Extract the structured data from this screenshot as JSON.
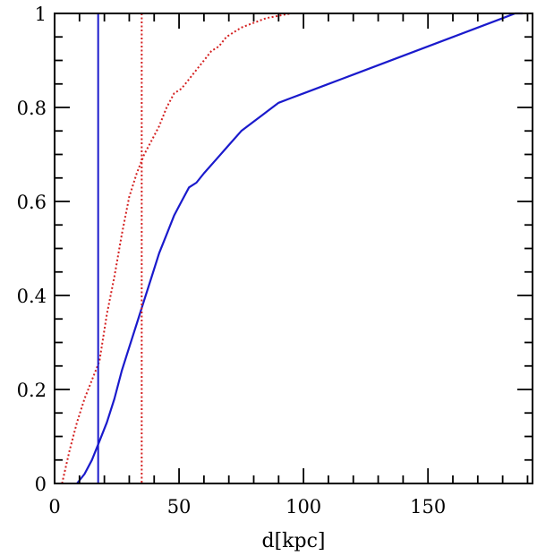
{
  "chart_data": {
    "type": "line",
    "title": "",
    "xlabel": "d[kpc]",
    "ylabel": "",
    "xlim": [
      0,
      192
    ],
    "ylim": [
      0,
      1
    ],
    "x_ticks": [
      0,
      50,
      100,
      150
    ],
    "y_ticks": [
      0,
      0.2,
      0.4,
      0.6,
      0.8,
      1
    ],
    "x_tick_labels": [
      "0",
      "50",
      "100",
      "150"
    ],
    "y_tick_labels": [
      "0",
      "0.2",
      "0.4",
      "0.6",
      "0.8",
      "1"
    ],
    "x_minor_step": 10,
    "y_minor_step": 0.05,
    "grid": false,
    "series": [
      {
        "style": "solid",
        "color": "#1a1acc",
        "x": [
          9,
          12,
          15,
          18,
          21,
          24,
          27,
          30,
          33,
          36,
          39,
          42,
          45,
          48,
          51,
          54,
          57,
          60,
          65,
          70,
          75,
          80,
          85,
          90,
          95,
          100,
          110,
          120,
          130,
          140,
          150,
          160,
          170,
          180,
          185,
          188
        ],
        "y": [
          0,
          0.02,
          0.05,
          0.09,
          0.13,
          0.18,
          0.24,
          0.29,
          0.34,
          0.39,
          0.44,
          0.49,
          0.53,
          0.57,
          0.6,
          0.63,
          0.64,
          0.66,
          0.69,
          0.72,
          0.75,
          0.77,
          0.79,
          0.81,
          0.82,
          0.83,
          0.85,
          0.87,
          0.89,
          0.91,
          0.93,
          0.95,
          0.97,
          0.99,
          1.0,
          1.0
        ]
      },
      {
        "style": "dotted",
        "color": "#d42020",
        "x": [
          3,
          6,
          9,
          12,
          15,
          18,
          21,
          24,
          27,
          30,
          33,
          36,
          39,
          42,
          45,
          48,
          51,
          54,
          57,
          60,
          63,
          66,
          69,
          72,
          75,
          80,
          85,
          90,
          95,
          100,
          110,
          120,
          130,
          140,
          150,
          160,
          170,
          190
        ],
        "y": [
          0,
          0.07,
          0.13,
          0.18,
          0.22,
          0.26,
          0.36,
          0.44,
          0.53,
          0.61,
          0.66,
          0.7,
          0.73,
          0.76,
          0.8,
          0.83,
          0.84,
          0.86,
          0.88,
          0.9,
          0.92,
          0.93,
          0.95,
          0.96,
          0.97,
          0.98,
          0.99,
          0.995,
          1.0,
          1.0,
          1.0,
          1.0,
          1.0,
          1.0,
          1.0,
          1.0,
          1.0,
          1.0
        ]
      }
    ],
    "vertical_lines": [
      {
        "x": 17.5,
        "style": "solid",
        "color": "#1a1acc"
      },
      {
        "x": 35,
        "style": "dotted",
        "color": "#d42020"
      }
    ]
  }
}
